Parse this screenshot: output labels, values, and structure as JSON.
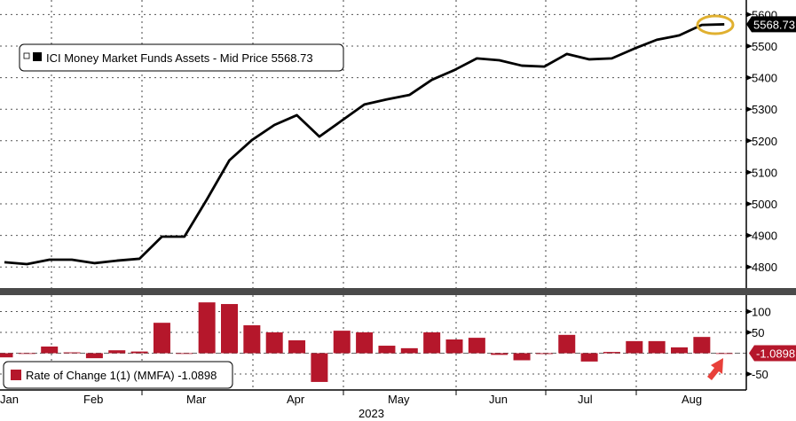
{
  "chart_data": [
    {
      "type": "line",
      "title": "ICI Money Market Funds Assets - Mid Price 5568.73",
      "legend": "ICI Money Market Funds Assets - Mid Price 5568.73",
      "legend_placement": "top-left",
      "last_value_label": "5568.73",
      "color": "#000000",
      "ylim": [
        4750,
        5620
      ],
      "yticks": [
        4800,
        4900,
        5000,
        5100,
        5200,
        5300,
        5400,
        5500,
        5600
      ],
      "grid": true,
      "values": [
        4815,
        4809,
        4823,
        4823,
        4812,
        4820,
        4826,
        4896,
        4896,
        5014,
        5138,
        5202,
        5250,
        5281,
        5213,
        5264,
        5315,
        5331,
        5345,
        5393,
        5424,
        5461,
        5455,
        5438,
        5435,
        5475,
        5458,
        5461,
        5492,
        5520,
        5534,
        5567,
        5569
      ]
    },
    {
      "type": "bar",
      "legend": "Rate of Change 1(1) (MMFA) -1.0898",
      "legend_placement": "bottom-left",
      "last_value_label": "-1.0898",
      "color": "#b5172b",
      "ylim": [
        -75,
        140
      ],
      "yticks": [
        -50,
        50,
        100
      ],
      "grid": true,
      "values": [
        -10,
        -1,
        16,
        2,
        -12,
        7,
        4,
        73,
        0,
        122,
        118,
        67,
        50,
        31,
        -69,
        54,
        50,
        18,
        12,
        50,
        33,
        37,
        -4,
        -17,
        -2,
        44,
        -20,
        3,
        29,
        29,
        14,
        39,
        -1.0898
      ]
    }
  ],
  "x_axis": {
    "months": [
      "Jan",
      "Feb",
      "Mar",
      "Apr",
      "May",
      "Jun",
      "Jul",
      "Aug"
    ],
    "year": "2023"
  },
  "annotation_colors": {
    "ellipse": "#e0b030",
    "arrow": "#e8403a"
  }
}
